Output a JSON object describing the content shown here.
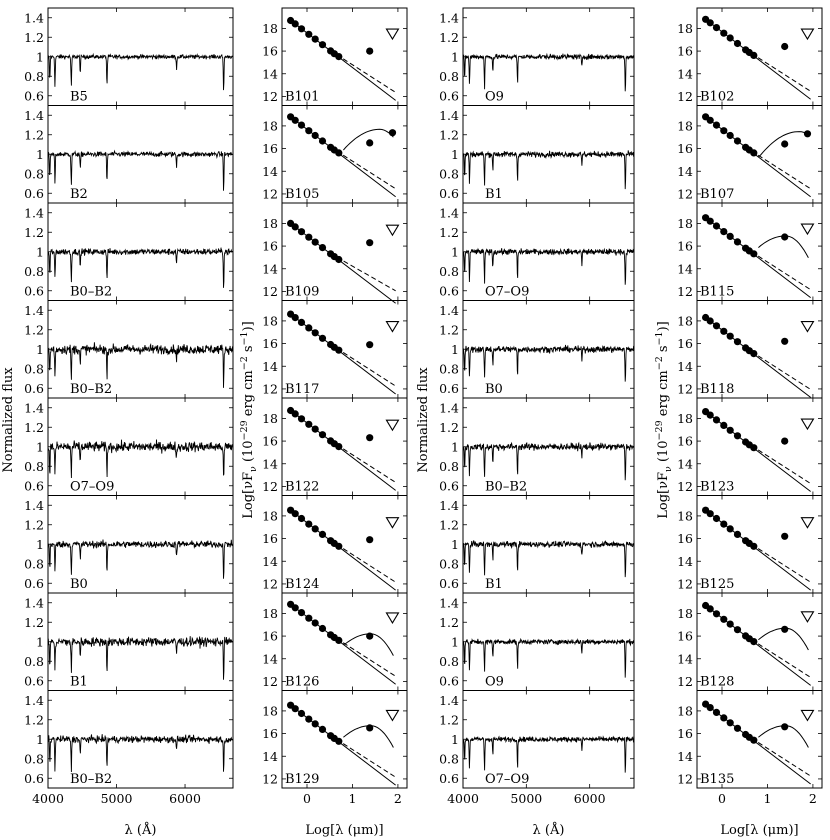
{
  "figure": {
    "columns": [
      {
        "kind": "spectrum",
        "ylabel": "Normalized flux",
        "xlabel": "λ (Å)"
      },
      {
        "kind": "sed",
        "ylabel": "Log[νF",
        "ylabel_sub": "ν",
        "ylabel_rest": " (10",
        "ylabel_sup": "−29",
        "ylabel_unit": " erg cm",
        "ylabel_unit_sup": "−2",
        "ylabel_unit2": " s",
        "ylabel_unit2_sup": "−1",
        "ylabel_end": ")]",
        "xlabel": "Log[λ (μm)]"
      },
      {
        "kind": "spectrum",
        "ylabel": "Normalized flux",
        "xlabel": "λ (Å)"
      },
      {
        "kind": "sed",
        "ylabel": "Log[νF",
        "ylabel_sub": "ν",
        "ylabel_rest": " (10",
        "ylabel_sup": "−29",
        "ylabel_unit": " erg cm",
        "ylabel_unit_sup": "−2",
        "ylabel_unit2": " s",
        "ylabel_unit2_sup": "−1",
        "ylabel_end": ")]",
        "xlabel": "Log[λ (μm)]"
      }
    ]
  },
  "chart_data": [
    {
      "type": "line",
      "role": "spectrum",
      "xlim": [
        4000,
        6700
      ],
      "ylim": [
        0.5,
        1.5
      ],
      "xticks": [
        4000,
        5000,
        6000
      ],
      "yticks": [
        0.6,
        0.8,
        1,
        1.2,
        1.4
      ],
      "absorption_lines": [
        4026,
        4102,
        4340,
        4471,
        4861,
        5876,
        6563
      ],
      "panels": [
        {
          "col": 0,
          "row": 0,
          "label": "B5",
          "noise": 0.018
        },
        {
          "col": 0,
          "row": 1,
          "label": "B2",
          "noise": 0.022
        },
        {
          "col": 0,
          "row": 2,
          "label": "B0–B2",
          "noise": 0.028
        },
        {
          "col": 0,
          "row": 3,
          "label": "B0–B2",
          "noise": 0.042
        },
        {
          "col": 0,
          "row": 4,
          "label": "O7–O9",
          "noise": 0.045
        },
        {
          "col": 0,
          "row": 5,
          "label": "B0",
          "noise": 0.03
        },
        {
          "col": 0,
          "row": 6,
          "label": "B1",
          "noise": 0.04
        },
        {
          "col": 0,
          "row": 7,
          "label": "B0–B2",
          "noise": 0.03
        },
        {
          "col": 2,
          "row": 0,
          "label": "O9",
          "noise": 0.022
        },
        {
          "col": 2,
          "row": 1,
          "label": "B1",
          "noise": 0.025
        },
        {
          "col": 2,
          "row": 2,
          "label": "O7–O9",
          "noise": 0.025
        },
        {
          "col": 2,
          "row": 3,
          "label": "B0",
          "noise": 0.028
        },
        {
          "col": 2,
          "row": 4,
          "label": "B0–B2",
          "noise": 0.03
        },
        {
          "col": 2,
          "row": 5,
          "label": "B1",
          "noise": 0.025
        },
        {
          "col": 2,
          "row": 6,
          "label": "O9",
          "noise": 0.022
        },
        {
          "col": 2,
          "row": 7,
          "label": "O7–O9",
          "noise": 0.022
        }
      ]
    },
    {
      "type": "scatter",
      "role": "sed",
      "xlim": [
        -0.55,
        2.2
      ],
      "ylim": [
        11.2,
        19.8
      ],
      "xticks": [
        0,
        1,
        2
      ],
      "yticks": [
        12,
        14,
        16,
        18
      ],
      "phot_x": [
        -0.36,
        -0.26,
        -0.12,
        0.04,
        0.18,
        0.34,
        0.52,
        0.6,
        0.7
      ],
      "panels": [
        {
          "col": 1,
          "row": 0,
          "label": "B101",
          "top": 18.7,
          "slope": -3.05,
          "mips24": 16.0,
          "mips70": 17.5,
          "mips70_upper": true,
          "disk": null
        },
        {
          "col": 1,
          "row": 1,
          "label": "B105",
          "top": 18.8,
          "slope": -3.05,
          "mips24": 16.5,
          "mips70": 17.4,
          "mips70_upper": false,
          "disk": {
            "start": 0.8,
            "peak_x": 1.6,
            "peak": 17.7
          }
        },
        {
          "col": 1,
          "row": 2,
          "label": "B109",
          "top": 18.0,
          "slope": -3.05,
          "mips24": 16.3,
          "mips70": 17.4,
          "mips70_upper": true,
          "disk": null,
          "short": true
        },
        {
          "col": 1,
          "row": 3,
          "label": "B117",
          "top": 18.6,
          "slope": -3.05,
          "mips24": 15.9,
          "mips70": 17.5,
          "mips70_upper": true,
          "disk": null
        },
        {
          "col": 1,
          "row": 4,
          "label": "B122",
          "top": 18.7,
          "slope": -3.05,
          "mips24": 16.3,
          "mips70": 17.4,
          "mips70_upper": true,
          "disk": null
        },
        {
          "col": 1,
          "row": 5,
          "label": "B124",
          "top": 18.5,
          "slope": -3.05,
          "mips24": 15.9,
          "mips70": 17.4,
          "mips70_upper": true,
          "disk": null
        },
        {
          "col": 1,
          "row": 6,
          "label": "B126",
          "top": 18.8,
          "slope": -3.05,
          "mips24": 16.0,
          "mips70": 17.6,
          "mips70_upper": true,
          "disk": {
            "start": 0.8,
            "peak_x": 1.4,
            "peak": 16.2
          }
        },
        {
          "col": 1,
          "row": 7,
          "label": "B129",
          "top": 18.5,
          "slope": -3.05,
          "mips24": 16.5,
          "mips70": 17.6,
          "mips70_upper": true,
          "disk": {
            "start": 0.8,
            "peak_x": 1.4,
            "peak": 16.7
          }
        },
        {
          "col": 3,
          "row": 0,
          "label": "B102",
          "top": 18.8,
          "slope": -3.05,
          "mips24": 16.4,
          "mips70": 17.5,
          "mips70_upper": true,
          "disk": null
        },
        {
          "col": 3,
          "row": 1,
          "label": "B107",
          "top": 18.8,
          "slope": -3.05,
          "mips24": 16.4,
          "mips70": 17.3,
          "mips70_upper": false,
          "disk": {
            "start": 0.8,
            "peak_x": 1.7,
            "peak": 17.5
          }
        },
        {
          "col": 3,
          "row": 2,
          "label": "B115",
          "top": 18.5,
          "slope": -3.05,
          "mips24": 16.8,
          "mips70": 17.5,
          "mips70_upper": true,
          "disk": {
            "start": 0.8,
            "peak_x": 1.4,
            "peak": 16.9
          }
        },
        {
          "col": 3,
          "row": 3,
          "label": "B118",
          "top": 18.3,
          "slope": -3.05,
          "mips24": 16.2,
          "mips70": 17.5,
          "mips70_upper": true,
          "disk": null
        },
        {
          "col": 3,
          "row": 4,
          "label": "B123",
          "top": 18.6,
          "slope": -3.05,
          "mips24": 16.0,
          "mips70": 17.5,
          "mips70_upper": true,
          "disk": null
        },
        {
          "col": 3,
          "row": 5,
          "label": "B125",
          "top": 18.5,
          "slope": -3.05,
          "mips24": 16.2,
          "mips70": 17.4,
          "mips70_upper": true,
          "disk": null
        },
        {
          "col": 3,
          "row": 6,
          "label": "B128",
          "top": 18.7,
          "slope": -3.05,
          "mips24": 16.6,
          "mips70": 17.7,
          "mips70_upper": true,
          "disk": {
            "start": 0.8,
            "peak_x": 1.4,
            "peak": 16.7
          }
        },
        {
          "col": 3,
          "row": 7,
          "label": "B135",
          "top": 18.6,
          "slope": -3.05,
          "mips24": 16.6,
          "mips70": 17.6,
          "mips70_upper": true,
          "disk": {
            "start": 0.8,
            "peak_x": 1.4,
            "peak": 16.7
          }
        }
      ]
    }
  ]
}
